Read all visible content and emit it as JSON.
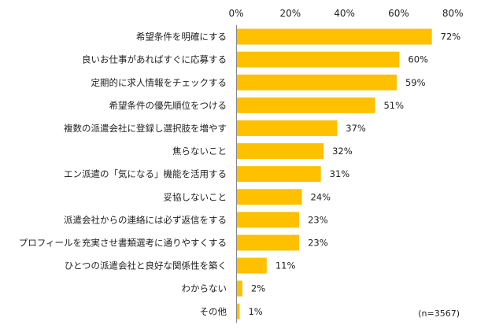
{
  "chart_data": {
    "type": "bar",
    "orientation": "horizontal",
    "xlim": [
      0,
      80
    ],
    "ticks": [
      "0%",
      "20%",
      "40%",
      "60%",
      "80%"
    ],
    "tick_values": [
      0,
      20,
      40,
      60,
      80
    ],
    "bar_color": "#FFC000",
    "categories": [
      "希望条件を明確にする",
      "良いお仕事があればすぐに応募する",
      "定期的に求人情報をチェックする",
      "希望条件の優先順位をつける",
      "複数の派遣会社に登録し選択肢を増やす",
      "焦らないこと",
      "エン派遣の「気になる」機能を活用する",
      "妥協しないこと",
      "派遣会社からの連絡には必ず返信をする",
      "プロフィールを充実させ書類選考に通りやすくする",
      "ひとつの派遣会社と良好な関係性を築く",
      "わからない",
      "その他"
    ],
    "values": [
      72,
      60,
      59,
      51,
      37,
      32,
      31,
      24,
      23,
      23,
      11,
      2,
      1
    ],
    "value_labels": [
      "72%",
      "60%",
      "59%",
      "51%",
      "37%",
      "32%",
      "31%",
      "24%",
      "23%",
      "23%",
      "11%",
      "2%",
      "1%"
    ]
  },
  "note": "(n=3567)"
}
